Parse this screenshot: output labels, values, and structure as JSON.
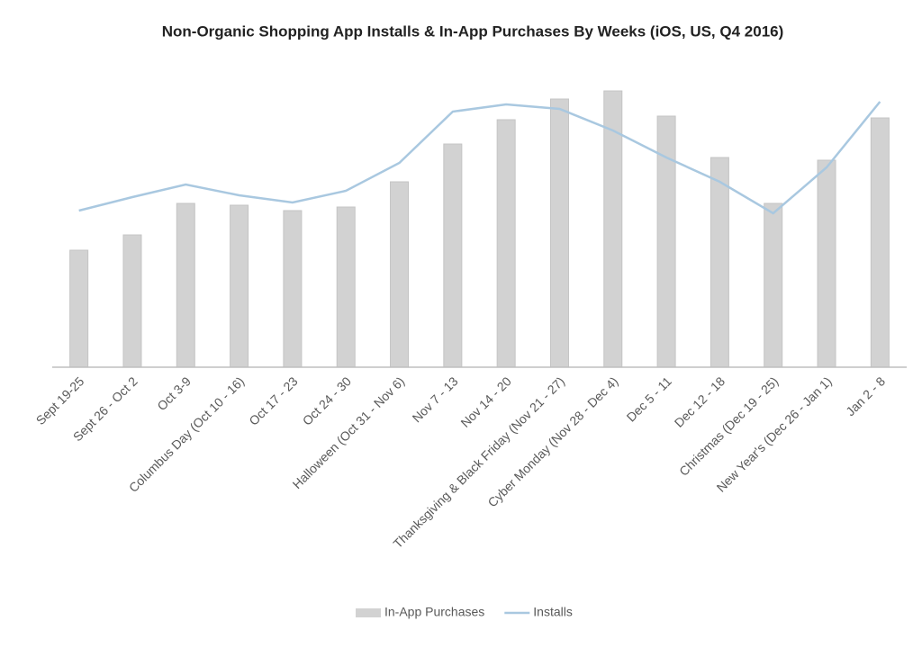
{
  "chart_data": {
    "type": "bar+line",
    "title": "Non-Organic Shopping App Installs & In-App Purchases By Weeks (iOS, US, Q4 2016)",
    "categories": [
      "Sept 19-25",
      "Sept 26 - Oct 2",
      "Oct 3-9",
      "Columbus Day (Oct 10 - 16)",
      "Oct 17 - 23",
      "Oct 24 - 30",
      "Halloween (Oct 31 - Nov 6)",
      "Nov 7 - 13",
      "Nov 14 - 20",
      "Thanksgiving & Black Friday (Nov 21 - 27)",
      "Cyber Monday (Nov 28 - Dec 4)",
      "Dec 5 - 11",
      "Dec 12 - 18",
      "Christmas (Dec 19 - 25)",
      "New Year's (Dec 26 - Jan 1)",
      "Jan 2 - 8"
    ],
    "series": [
      {
        "name": "In-App Purchases",
        "type": "bar",
        "color": "#d2d2d2",
        "values": [
          130,
          147,
          182,
          180,
          174,
          178,
          206,
          248,
          275,
          298,
          307,
          279,
          233,
          182,
          230,
          277
        ]
      },
      {
        "name": "Installs",
        "type": "line",
        "color": "#a9c8e0",
        "values": [
          174,
          189,
          203,
          191,
          183,
          196,
          227,
          284,
          292,
          287,
          263,
          233,
          206,
          171,
          222,
          295
        ]
      }
    ],
    "ylim": [
      0,
      340
    ],
    "legend": "bottom"
  }
}
